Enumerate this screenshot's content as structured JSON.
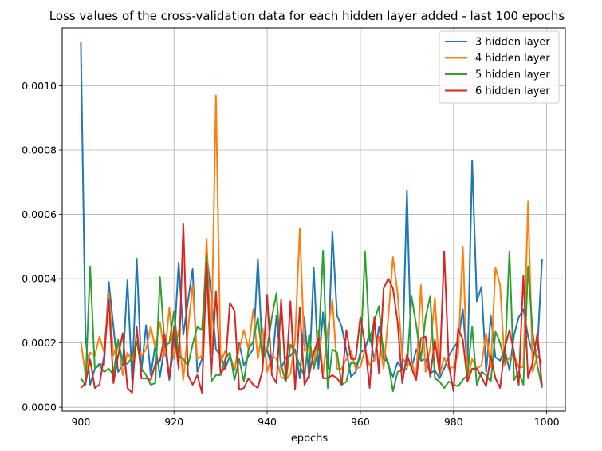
{
  "chart_data": {
    "type": "line",
    "title": "Loss values of the cross-validation data for each hidden layer added - last 100 epochs",
    "xlabel": "epochs",
    "ylabel": "",
    "xlim": [
      896,
      1004
    ],
    "ylim": [
      -1.2e-05,
      0.00118
    ],
    "xticks": [
      900,
      920,
      940,
      960,
      980,
      1000
    ],
    "xtick_labels": [
      "900",
      "920",
      "940",
      "960",
      "980",
      "1000"
    ],
    "yticks": [
      0.0,
      0.0002,
      0.0004,
      0.0006,
      0.0008,
      0.001
    ],
    "ytick_labels": [
      "0.0000",
      "0.0002",
      "0.0004",
      "0.0006",
      "0.0008",
      "0.0010"
    ],
    "grid": true,
    "legend_position": "top-right",
    "x": [
      900,
      901,
      902,
      903,
      904,
      905,
      906,
      907,
      908,
      909,
      910,
      911,
      912,
      913,
      914,
      915,
      916,
      917,
      918,
      919,
      920,
      921,
      922,
      923,
      924,
      925,
      926,
      927,
      928,
      929,
      930,
      931,
      932,
      933,
      934,
      935,
      936,
      937,
      938,
      939,
      940,
      941,
      942,
      943,
      944,
      945,
      946,
      947,
      948,
      949,
      950,
      951,
      952,
      953,
      954,
      955,
      956,
      957,
      958,
      959,
      960,
      961,
      962,
      963,
      964,
      965,
      966,
      967,
      968,
      969,
      970,
      971,
      972,
      973,
      974,
      975,
      976,
      977,
      978,
      979,
      980,
      981,
      982,
      983,
      984,
      985,
      986,
      987,
      988,
      989,
      990,
      991,
      992,
      993,
      994,
      995,
      996,
      997,
      998,
      999
    ],
    "series": [
      {
        "name": "3 hidden layer",
        "color": "#1f77b4",
        "values": [
          0.001135,
          0.00022,
          7e-05,
          0.00012,
          0.000135,
          0.00013,
          0.00039,
          0.00025,
          0.00011,
          0.00013,
          0.000395,
          8.5e-05,
          0.000462,
          0.00011,
          0.000255,
          0.0001,
          0.000195,
          9.5e-05,
          0.000195,
          8.5e-05,
          0.000195,
          0.00045,
          0.000225,
          0.00033,
          0.00043,
          0.00011,
          0.00015,
          0.000478,
          0.00035,
          0.00018,
          0.00016,
          0.00012,
          0.00016,
          0.000115,
          0.0002,
          0.00013,
          0.00016,
          0.00018,
          0.000462,
          0.00016,
          0.00018,
          0.00012,
          0.000285,
          0.00012,
          0.000155,
          0.00016,
          0.00018,
          9e-05,
          0.00028,
          9e-05,
          0.000435,
          0.00012,
          0.000295,
          0.00012,
          0.000545,
          0.000285,
          0.00025,
          0.000175,
          9.5e-05,
          0.00011,
          0.00017,
          0.00018,
          0.00023,
          0.000145,
          0.00025,
          0.00018,
          0.00013,
          9.5e-05,
          0.00014,
          0.00012,
          0.000675,
          0.00012,
          0.00018,
          0.000145,
          0.00015,
          0.000105,
          0.000115,
          9e-05,
          0.00012,
          0.00016,
          0.000185,
          0.000205,
          0.000305,
          0.00012,
          0.000768,
          0.00033,
          0.000375,
          0.00011,
          0.000285,
          0.000155,
          0.000145,
          0.00018,
          0.000115,
          0.000225,
          0.00028,
          0.000305,
          0.00022,
          0.000165,
          0.00018,
          0.00046
        ]
      },
      {
        "name": "4 hidden layer",
        "color": "#ff7f0e",
        "values": [
          0.000205,
          0.0001,
          0.00017,
          0.00016,
          0.00022,
          0.00017,
          0.000355,
          0.00016,
          0.000205,
          0.0001,
          0.00017,
          0.000145,
          0.0002,
          0.00016,
          0.00018,
          0.00025,
          0.000185,
          0.000265,
          0.00016,
          0.00031,
          0.00015,
          0.00024,
          8.5e-05,
          0.00024,
          0.00038,
          0.00015,
          0.00016,
          0.000525,
          0.00017,
          0.00097,
          0.00014,
          0.000175,
          0.00016,
          0.00012,
          0.00018,
          0.00024,
          0.00018,
          0.000305,
          0.00015,
          0.000245,
          0.00011,
          0.00016,
          0.00015,
          9.5e-05,
          8.5e-05,
          0.000105,
          0.000215,
          0.000555,
          0.000175,
          0.00019,
          0.00013,
          0.00024,
          0.000105,
          0.00024,
          0.000335,
          0.00012,
          0.00012,
          0.00015,
          0.000175,
          0.00012,
          0.000125,
          0.00018,
          0.00013,
          0.00015,
          0.00022,
          0.00012,
          0.00028,
          0.000467,
          0.000355,
          0.000155,
          0.00013,
          0.00014,
          9.5e-05,
          0.00038,
          0.00011,
          0.000185,
          0.00034,
          0.0001,
          0.000155,
          0.00012,
          0.000125,
          0.000165,
          0.0005,
          8.5e-05,
          0.00015,
          0.00012,
          0.00013,
          0.00023,
          0.000125,
          0.000435,
          0.00038,
          0.00013,
          0.000155,
          0.00016,
          0.000125,
          0.000125,
          0.00064,
          0.00011,
          0.00016,
          0.00014
        ]
      },
      {
        "name": "5 hidden layer",
        "color": "#2ca02c",
        "values": [
          9e-05,
          7e-05,
          0.000438,
          0.00012,
          0.00013,
          0.00011,
          0.00012,
          0.0001,
          0.00021,
          0.00014,
          0.000135,
          0.000155,
          0.000205,
          0.00012,
          0.0001,
          7e-05,
          7.5e-05,
          0.000405,
          0.00019,
          0.0002,
          0.0003,
          0.00016,
          0.00015,
          0.00013,
          0.000195,
          0.00025,
          0.00024,
          0.00047,
          8e-05,
          0.0001,
          0.0001,
          0.00015,
          0.00017,
          8.5e-05,
          0.00015,
          8e-05,
          0.00018,
          0.000205,
          0.00028,
          0.00015,
          0.00018,
          0.00028,
          0.000355,
          0.00013,
          8e-05,
          0.000195,
          0.00017,
          0.00013,
          9.5e-05,
          0.000225,
          0.00012,
          0.00018,
          0.000487,
          6e-05,
          0.00018,
          0.00017,
          7e-05,
          8e-05,
          0.00014,
          0.000135,
          0.00015,
          0.000485,
          0.000205,
          0.00027,
          0.000315,
          0.00015,
          0.00014,
          5e-05,
          0.00011,
          0.000115,
          0.00012,
          0.000345,
          0.000255,
          0.00015,
          0.00028,
          0.000345,
          9e-05,
          8e-05,
          6e-05,
          8e-05,
          7e-05,
          6.5e-05,
          8.5e-05,
          0.0001,
          0.00025,
          7e-05,
          0.00011,
          0.0001,
          8e-05,
          0.000235,
          0.0002,
          0.00014,
          0.000485,
          8.5e-05,
          0.00011,
          7e-05,
          0.000438,
          0.00023,
          0.00013,
          6e-05
        ]
      },
      {
        "name": "6 hidden layer",
        "color": "#d62728",
        "values": [
          6e-05,
          7.5e-05,
          0.000148,
          6e-05,
          7e-05,
          0.00016,
          0.000335,
          7.5e-05,
          0.00016,
          0.00023,
          6e-05,
          4.5e-05,
          0.00025,
          9e-05,
          9e-05,
          8.5e-05,
          0.000135,
          0.000145,
          0.000225,
          9e-05,
          0.00025,
          0.00012,
          0.000572,
          0.0001,
          7e-05,
          0.0001,
          4.5e-05,
          0.00045,
          0.0001,
          0.00036,
          0.000105,
          0.000125,
          0.000325,
          0.0003,
          5.5e-05,
          6e-05,
          9e-05,
          7e-05,
          6e-05,
          0.000115,
          0.00035,
          0.0001,
          7.5e-05,
          0.000335,
          8.5e-05,
          0.00033,
          5.5e-05,
          0.00031,
          7e-05,
          0.0001,
          0.00017,
          0.000215,
          9e-05,
          9e-05,
          0.0001,
          9e-05,
          7e-05,
          0.00024,
          0.00015,
          0.00015,
          0.00028,
          0.000195,
          6e-05,
          0.00028,
          0.000105,
          0.00037,
          0.0004,
          0.00037,
          0.000265,
          7.5e-05,
          0.000165,
          0.00012,
          8.5e-05,
          0.000215,
          0.00022,
          9.5e-05,
          0.00021,
          0.000105,
          0.000485,
          0.00013,
          5e-05,
          0.000245,
          0.00021,
          8e-05,
          0.00012,
          0.00012,
          9.5e-05,
          6.5e-05,
          0.00016,
          9e-05,
          6e-05,
          0.000185,
          0.00024,
          0.00017,
          7e-05,
          0.00041,
          9e-05,
          0.00014,
          0.00023,
          6.5e-05
        ]
      }
    ]
  }
}
